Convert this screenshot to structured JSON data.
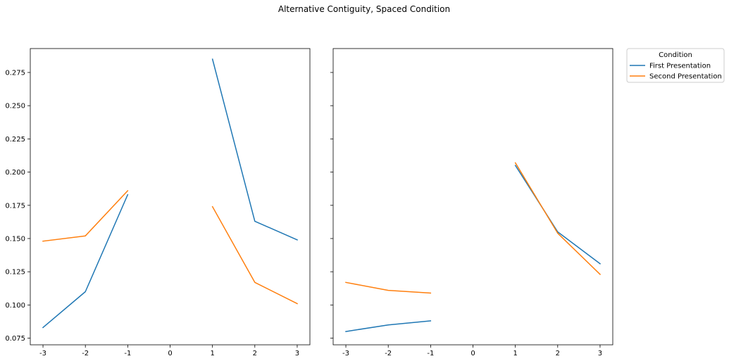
{
  "chart_data": {
    "type": "line",
    "title": "Alternative Contiguity, Spaced Condition",
    "legend": {
      "title": "Condition",
      "placement": "outside-top-right",
      "entries": [
        {
          "name": "First Presentation",
          "color": "#1f77b4"
        },
        {
          "name": "Second Presentation",
          "color": "#ff7f0e"
        }
      ]
    },
    "shared_y": true,
    "ylim": [
      0.07,
      0.293
    ],
    "yticks": [
      "0.075",
      "0.100",
      "0.125",
      "0.150",
      "0.175",
      "0.200",
      "0.225",
      "0.250",
      "0.275"
    ],
    "xlim": [
      -3.3,
      3.3
    ],
    "xticks": [
      "-3",
      "-2",
      "-1",
      "0",
      "1",
      "2",
      "3"
    ],
    "grid": false,
    "panels": [
      {
        "series": [
          {
            "name": "First Presentation",
            "color": "#1f77b4",
            "segments": [
              {
                "x": [
                  -3,
                  -2,
                  -1
                ],
                "y": [
                  0.083,
                  0.11,
                  0.183
                ]
              },
              {
                "x": [
                  1,
                  2,
                  3
                ],
                "y": [
                  0.285,
                  0.163,
                  0.149
                ]
              }
            ]
          },
          {
            "name": "Second Presentation",
            "color": "#ff7f0e",
            "segments": [
              {
                "x": [
                  -3,
                  -2,
                  -1
                ],
                "y": [
                  0.148,
                  0.152,
                  0.186
                ]
              },
              {
                "x": [
                  1,
                  2,
                  3
                ],
                "y": [
                  0.174,
                  0.117,
                  0.101
                ]
              }
            ]
          }
        ]
      },
      {
        "series": [
          {
            "name": "First Presentation",
            "color": "#1f77b4",
            "segments": [
              {
                "x": [
                  -3,
                  -2,
                  -1
                ],
                "y": [
                  0.08,
                  0.085,
                  0.088
                ]
              },
              {
                "x": [
                  1,
                  2,
                  3
                ],
                "y": [
                  0.205,
                  0.155,
                  0.131
                ]
              }
            ]
          },
          {
            "name": "Second Presentation",
            "color": "#ff7f0e",
            "segments": [
              {
                "x": [
                  -3,
                  -2,
                  -1
                ],
                "y": [
                  0.117,
                  0.111,
                  0.109
                ]
              },
              {
                "x": [
                  1,
                  2,
                  3
                ],
                "y": [
                  0.207,
                  0.154,
                  0.123
                ]
              }
            ]
          }
        ]
      }
    ]
  }
}
